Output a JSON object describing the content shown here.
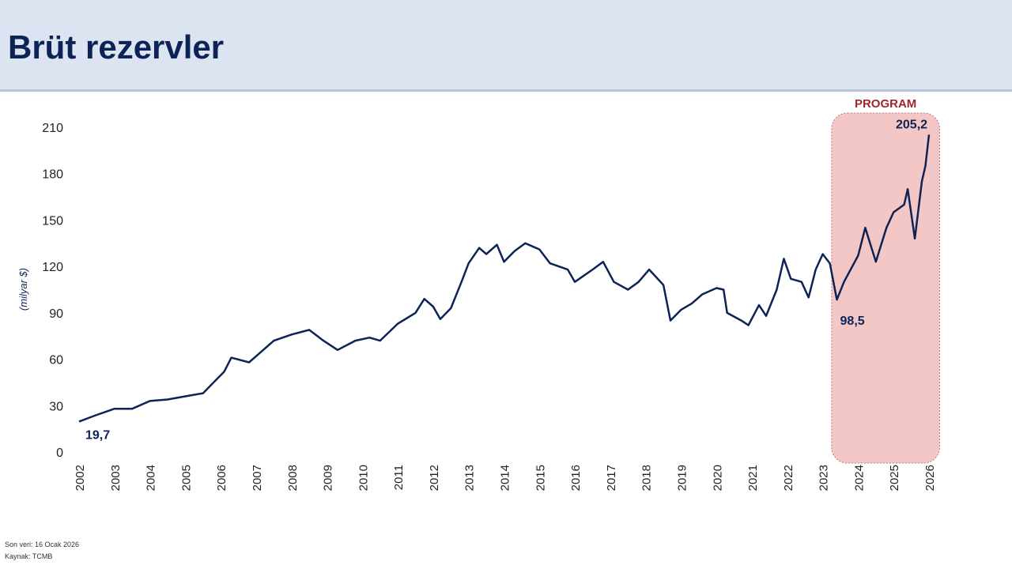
{
  "title": "Brüt rezervler",
  "footer": {
    "last_data": "Son veri: 16 Ocak 2026",
    "source": "Kaynak: TCMB"
  },
  "chart_data": {
    "type": "line",
    "title": "",
    "ylabel": "(milyar $)",
    "ylim": [
      0,
      210
    ],
    "yticks": [
      0,
      30,
      60,
      90,
      120,
      150,
      180,
      210
    ],
    "xticks": [
      2002,
      2003,
      2004,
      2005,
      2006,
      2007,
      2008,
      2009,
      2010,
      2011,
      2012,
      2013,
      2014,
      2015,
      2016,
      2017,
      2018,
      2019,
      2020,
      2021,
      2022,
      2023,
      2024,
      2025,
      2026
    ],
    "grid": false,
    "line_color": "#0d2356",
    "highlight": {
      "label": "PROGRAM",
      "from": 2023.25,
      "to": 2026.3,
      "color": "#f4c7c7",
      "label_color": "#a0262b"
    },
    "annotations": [
      {
        "x": 2002.0,
        "y": 19.7,
        "text": "19,7"
      },
      {
        "x": 2023.4,
        "y": 98.5,
        "text": "98,5"
      },
      {
        "x": 2026.0,
        "y": 205.2,
        "text": "205,2"
      }
    ],
    "x": [
      2002.0,
      2002.5,
      2003,
      2003.5,
      2004,
      2004.5,
      2005,
      2005.5,
      2005.8,
      2006.1,
      2006.3,
      2006.8,
      2007,
      2007.5,
      2008,
      2008.5,
      2008.9,
      2009.3,
      2009.8,
      2010.2,
      2010.5,
      2011,
      2011.5,
      2011.75,
      2012,
      2012.2,
      2012.5,
      2012.8,
      2013,
      2013.3,
      2013.5,
      2013.8,
      2014,
      2014.3,
      2014.6,
      2015,
      2015.3,
      2015.8,
      2016,
      2016.5,
      2016.8,
      2017.1,
      2017.5,
      2017.8,
      2018.1,
      2018.5,
      2018.7,
      2019,
      2019.3,
      2019.6,
      2020,
      2020.2,
      2020.3,
      2020.7,
      2020.9,
      2021.2,
      2021.4,
      2021.7,
      2021.9,
      2022.1,
      2022.4,
      2022.6,
      2022.8,
      2023,
      2023.2,
      2023.4,
      2023.6,
      2024,
      2024.2,
      2024.5,
      2024.8,
      2025,
      2025.3,
      2025.4,
      2025.6,
      2025.8,
      2025.9,
      2026.0
    ],
    "y": [
      19.7,
      24,
      28,
      28,
      33,
      34,
      36,
      38,
      45,
      52,
      61,
      58,
      62,
      72,
      76,
      79,
      72,
      66,
      72,
      74,
      72,
      83,
      90,
      99,
      94,
      86,
      93,
      110,
      122,
      132,
      128,
      134,
      123,
      130,
      135,
      131,
      122,
      118,
      110,
      118,
      123,
      110,
      105,
      110,
      118,
      108,
      85,
      92,
      96,
      102,
      106,
      105,
      90,
      85,
      82,
      95,
      88,
      105,
      125,
      112,
      110,
      100,
      118,
      128,
      122,
      98.5,
      110,
      127,
      145,
      123,
      145,
      155,
      160,
      170,
      138,
      175,
      185,
      205.2
    ]
  }
}
